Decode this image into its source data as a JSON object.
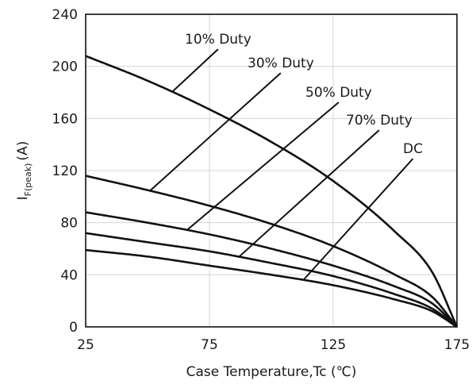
{
  "chart_data": {
    "type": "line",
    "xlabel": "Case Temperature,Tc (℃)",
    "ylabel_main": "I",
    "ylabel_sub": "F(peak)",
    "ylabel_unit": "(A)",
    "xlim": [
      25,
      175
    ],
    "ylim": [
      0,
      240
    ],
    "x_ticks": [
      25,
      75,
      125,
      175
    ],
    "y_ticks": [
      0,
      40,
      80,
      120,
      160,
      200,
      240
    ],
    "grid": true,
    "series": [
      {
        "name": "10% Duty",
        "x": [
          25,
          50,
          75,
          100,
          125,
          150,
          165,
          175
        ],
        "values": [
          208,
          189,
          167,
          142,
          112,
          73,
          42,
          0
        ]
      },
      {
        "name": "30% Duty",
        "x": [
          25,
          50,
          75,
          100,
          125,
          150,
          165,
          175
        ],
        "values": [
          116,
          105,
          93,
          79,
          62,
          40,
          23,
          0
        ]
      },
      {
        "name": "50% Duty",
        "x": [
          25,
          50,
          75,
          100,
          125,
          150,
          165,
          175
        ],
        "values": [
          88,
          80,
          71,
          60,
          47,
          31,
          18,
          0
        ]
      },
      {
        "name": "70% Duty",
        "x": [
          25,
          50,
          75,
          100,
          125,
          150,
          165,
          175
        ],
        "values": [
          72,
          65,
          58,
          49,
          39,
          25,
          14,
          0
        ]
      },
      {
        "name": "DC",
        "x": [
          25,
          50,
          75,
          100,
          125,
          150,
          165,
          175
        ],
        "values": [
          59,
          54,
          47,
          40,
          32,
          21,
          12,
          0
        ]
      }
    ],
    "annotations": [
      {
        "text": "10% Duty",
        "series": "10% Duty",
        "x": 60
      },
      {
        "text": "30% Duty",
        "series": "30% Duty",
        "x": 51
      },
      {
        "text": "50% Duty",
        "series": "50% Duty",
        "x": 66
      },
      {
        "text": "70% Duty",
        "series": "70% Duty",
        "x": 87
      },
      {
        "text": "DC",
        "series": "DC",
        "x": 113
      }
    ]
  }
}
